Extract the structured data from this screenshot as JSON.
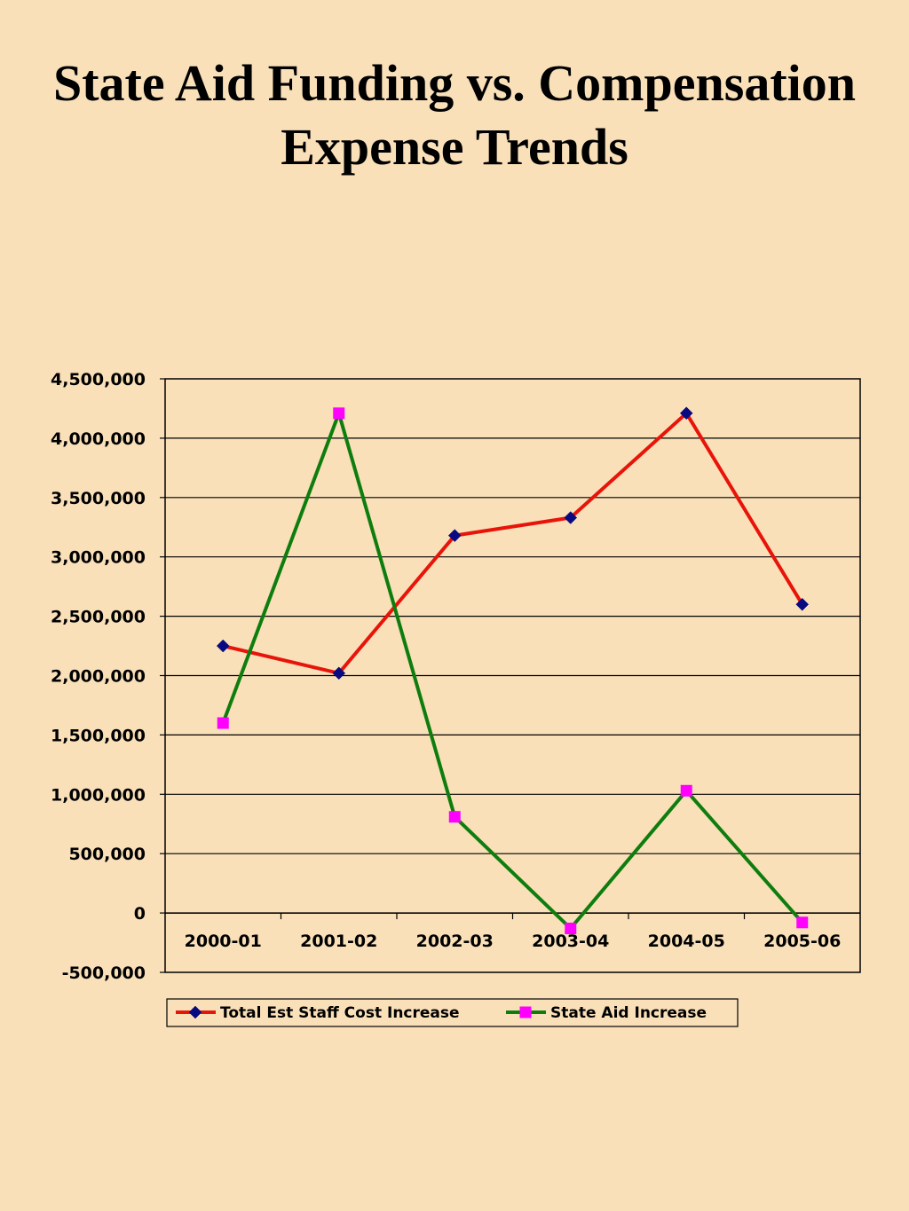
{
  "slide": {
    "title_line1": "State Aid Funding vs. Compensation",
    "title_line2": "Expense Trends"
  },
  "chart_data": {
    "type": "line",
    "title": "",
    "xlabel": "",
    "ylabel": "",
    "categories": [
      "2000-01",
      "2001-02",
      "2002-03",
      "2003-04",
      "2004-05",
      "2005-06"
    ],
    "ylim": [
      -500000,
      4500000
    ],
    "yticks": [
      -500000,
      0,
      500000,
      1000000,
      1500000,
      2000000,
      2500000,
      3000000,
      3500000,
      4000000,
      4500000
    ],
    "ytick_labels": [
      "-500,000",
      "0",
      "500,000",
      "1,000,000",
      "1,500,000",
      "2,000,000",
      "2,500,000",
      "3,000,000",
      "3,500,000",
      "4,000,000",
      "4,500,000"
    ],
    "grid": true,
    "legend_position": "bottom",
    "series": [
      {
        "name": "Total Est Staff Cost Increase",
        "values": [
          2250000,
          2020000,
          3180000,
          3330000,
          4210000,
          2600000
        ],
        "line_color": "#E8140A",
        "marker": "diamond",
        "marker_color": "#0A0A80"
      },
      {
        "name": "State Aid Increase",
        "values": [
          1600000,
          4210000,
          810000,
          -130000,
          1030000,
          -80000
        ],
        "line_color": "#0E7D0E",
        "marker": "square",
        "marker_color": "#FF00FF"
      }
    ]
  }
}
